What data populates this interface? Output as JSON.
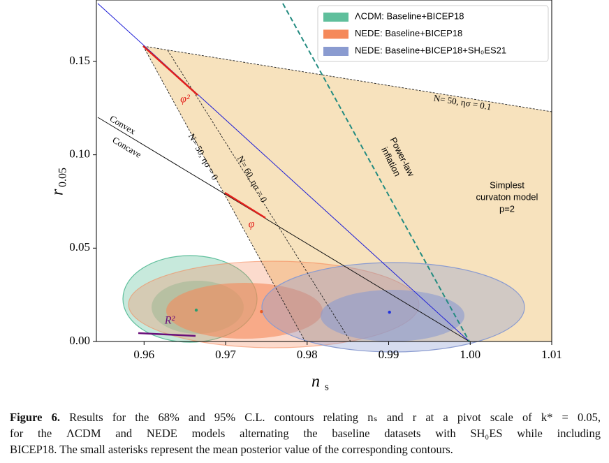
{
  "chart_data": {
    "type": "scatter",
    "x_label": "n",
    "x_label_sub": "s",
    "y_label": "r",
    "y_label_sub": "0.05",
    "xlim": [
      0.95415,
      1.01
    ],
    "ylim": [
      0,
      0.1829
    ],
    "xticks": [
      0.96,
      0.97,
      0.98,
      0.99,
      {
        "value": 1.0,
        "label": "1.00"
      },
      1.01
    ],
    "yticks": [
      {
        "value": 0,
        "label": "0.00"
      },
      0.05,
      {
        "value": 0.1,
        "label": "0.10"
      },
      0.15
    ],
    "legend_position": "upper right",
    "series": [
      {
        "name": "ΛCDM: Baseline+BICEP18",
        "color": "#5fbf9c",
        "x": [
          0.9664
        ],
        "values": [
          0.0168
        ]
      },
      {
        "name": "NEDE: Baseline+BICEP18",
        "color": "#f5895a",
        "x": [
          0.9744
        ],
        "values": [
          0.016
        ]
      },
      {
        "name": "NEDE: Baseline+BICEP18+SH₀ES21",
        "color": "#8a9bd0",
        "x": [
          0.9901
        ],
        "values": [
          0.0157
        ]
      }
    ],
    "annotations": {
      "convex": "Convex",
      "concave": "Concave",
      "phi2": "φ²",
      "phi": "φ",
      "r2": "R²",
      "n50_01": "N= 50, ησ = 0.1",
      "n50_0": "N= 50, ησ = 0",
      "n60_0": "N= 60, ησ = 0",
      "power_law": [
        "Power-law",
        "inflation"
      ],
      "curvaton": [
        "Simplest",
        "curvaton model",
        "p=2"
      ]
    }
  },
  "caption": {
    "label": "Figure 6.",
    "lines": [
      "Results for the 68% and 95% C.L. contours relating nₛ and r at a pivot scale of k* = 0.05,",
      "for the ΛCDM and NEDE models alternating the baseline datasets with SH₀ES while including",
      "BICEP18. The small asterisks represent the mean posterior value of the corresponding contours."
    ]
  }
}
